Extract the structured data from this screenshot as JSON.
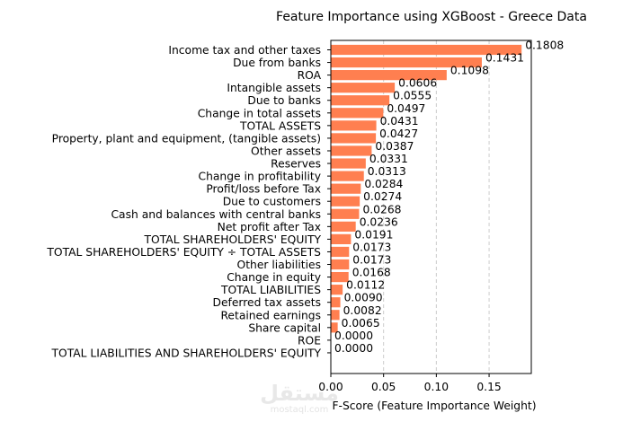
{
  "chart_data": {
    "type": "bar",
    "orientation": "horizontal",
    "title": "Feature Importance using XGBoost - Greece Data",
    "xlabel": "F-Score (Feature Importance Weight)",
    "ylabel": "",
    "xlim": [
      0,
      0.19
    ],
    "xticks": [
      "0.00",
      "0.05",
      "0.10",
      "0.15"
    ],
    "xtick_values": [
      0,
      0.05,
      0.1,
      0.15
    ],
    "grid": "x-axis dashed",
    "bar_color": "#ff7f50",
    "categories": [
      "Income tax and other taxes",
      "Due from banks",
      "ROA",
      "Intangible assets",
      "Due to banks",
      "Change in total assets",
      "TOTAL ASSETS",
      "Property, plant and equipment, (tangible assets)",
      "Other assets",
      "Reserves",
      "Change in profitability",
      "Profit/loss before Tax",
      "Due to customers",
      "Cash and balances with central banks",
      "Net profit after Tax ",
      "TOTAL SHAREHOLDERS' EQUITY",
      "TOTAL SHAREHOLDERS' EQUITY ÷ TOTAL ASSETS",
      "Other liabilities",
      "Change in equity",
      "TOTAL LIABILITIES",
      "Deferred tax assets",
      "Retained earnings",
      "Share capital",
      "ROE",
      "TOTAL LIABILITIES AND SHAREHOLDERS' EQUITY"
    ],
    "values": [
      0.1808,
      0.1431,
      0.1098,
      0.0606,
      0.0555,
      0.0497,
      0.0431,
      0.0427,
      0.0387,
      0.0331,
      0.0313,
      0.0284,
      0.0274,
      0.0268,
      0.0236,
      0.0191,
      0.0173,
      0.0173,
      0.0168,
      0.0112,
      0.009,
      0.0082,
      0.0065,
      0.0,
      0.0
    ],
    "value_labels": [
      "0.1808",
      "0.1431",
      "0.1098",
      "0.0606",
      "0.0555",
      "0.0497",
      "0.0431",
      "0.0427",
      "0.0387",
      "0.0331",
      "0.0313",
      "0.0284",
      "0.0274",
      "0.0268",
      "0.0236",
      "0.0191",
      "0.0173",
      "0.0173",
      "0.0168",
      "0.0112",
      "0.0090",
      "0.0082",
      "0.0065",
      "0.0000",
      "0.0000"
    ]
  },
  "watermark": {
    "text": "مستقل",
    "subtext": "mostaql.com"
  }
}
